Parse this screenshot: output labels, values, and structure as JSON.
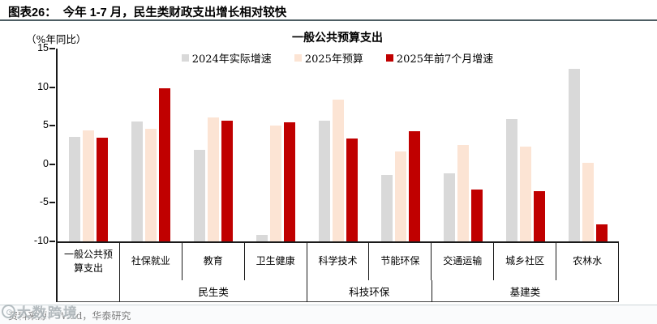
{
  "header": {
    "title": "图表26：  今年 1-7 月，民生类财政支出增长相对较快"
  },
  "chart_data": {
    "type": "bar",
    "title": "一般公共预算支出",
    "unit_label": "（%年同比）",
    "ylabel": "%年同比",
    "ylim": [
      -10,
      15
    ],
    "yticks": [
      15,
      10,
      5,
      0,
      -5,
      -10
    ],
    "axis_crosses_at_min": true,
    "grid": false,
    "legend_position": "top",
    "categories": [
      "一般公共预算支出",
      "社保就业",
      "教育",
      "卫生健康",
      "科学技术",
      "节能环保",
      "交通运输",
      "城乡社区",
      "农林水"
    ],
    "series": [
      {
        "name": "2024年实际增速",
        "color": "#d9d9d9",
        "values": [
          3.6,
          5.6,
          1.9,
          -9.2,
          5.7,
          -1.4,
          -1.2,
          5.9,
          12.4
        ]
      },
      {
        "name": "2025年预算",
        "color": "#fce4d4",
        "values": [
          4.4,
          4.6,
          6.1,
          5.0,
          8.4,
          1.7,
          2.5,
          2.3,
          0.2
        ]
      },
      {
        "name": "2025年前7个月增速",
        "color": "#c00000",
        "values": [
          3.4,
          9.9,
          5.7,
          5.4,
          3.3,
          4.3,
          -3.3,
          -3.5,
          -7.8
        ]
      }
    ],
    "category_groups": [
      {
        "label": "",
        "span": 1
      },
      {
        "label": "民生类",
        "span": 3
      },
      {
        "label": "科技环保",
        "span": 2
      },
      {
        "label": "基建类",
        "span": 3
      }
    ]
  },
  "footer": {
    "source": "资料来源：Wind，华泰研究",
    "watermark": "大数跨境"
  }
}
